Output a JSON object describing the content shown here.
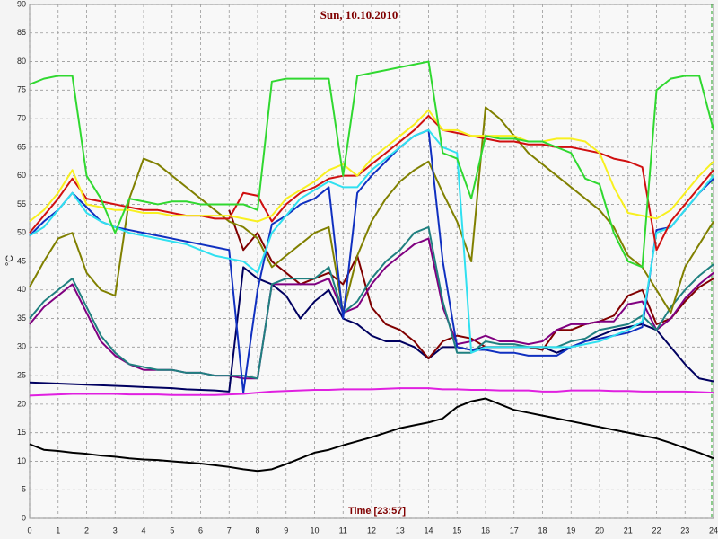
{
  "chart_data": {
    "type": "line",
    "title": "Sun, 10.10.2010",
    "x_label": "Time [23:57]",
    "y_label": "°C",
    "x": [
      0,
      0.5,
      1,
      1.5,
      2,
      2.5,
      3,
      3.5,
      4,
      4.5,
      5,
      5.5,
      6,
      6.5,
      7,
      7.5,
      8,
      8.5,
      9,
      9.5,
      10,
      10.5,
      11,
      11.5,
      12,
      12.5,
      13,
      13.5,
      14,
      14.5,
      15,
      15.5,
      16,
      16.5,
      17,
      17.5,
      18,
      18.5,
      19,
      19.5,
      20,
      20.5,
      21,
      21.5,
      22,
      22.5,
      23,
      23.5,
      24
    ],
    "xlim": [
      0,
      24
    ],
    "xticks": [
      0,
      1,
      2,
      3,
      4,
      5,
      6,
      7,
      8,
      9,
      10,
      11,
      12,
      13,
      14,
      15,
      16,
      17,
      18,
      19,
      20,
      21,
      22,
      23,
      24
    ],
    "ylim": [
      0,
      90
    ],
    "yticks": [
      0,
      5,
      10,
      15,
      20,
      25,
      30,
      35,
      40,
      45,
      50,
      55,
      60,
      65,
      70,
      75,
      80,
      85,
      90
    ],
    "grid": true,
    "series": [
      {
        "color": "#000000",
        "values": [
          13,
          12,
          11.8,
          11.5,
          11.3,
          11,
          10.8,
          10.5,
          10.3,
          10.2,
          10,
          9.8,
          9.6,
          9.3,
          9,
          8.6,
          8.3,
          8.6,
          9.5,
          10.5,
          11.5,
          12,
          12.8,
          13.5,
          14.2,
          15,
          15.8,
          16.3,
          16.8,
          17.5,
          19.5,
          20.5,
          21,
          20,
          19,
          18.5,
          18,
          17.5,
          17,
          16.5,
          16,
          15.5,
          15,
          14.5,
          14,
          13.2,
          12.3,
          11.5,
          10.5
        ]
      },
      {
        "color": "#e020e0",
        "values": [
          21.5,
          21.6,
          21.7,
          21.8,
          21.8,
          21.8,
          21.8,
          21.7,
          21.7,
          21.7,
          21.6,
          21.6,
          21.6,
          21.6,
          21.7,
          21.8,
          22,
          22.2,
          22.3,
          22.4,
          22.5,
          22.5,
          22.6,
          22.6,
          22.6,
          22.7,
          22.8,
          22.8,
          22.8,
          22.6,
          22.6,
          22.5,
          22.5,
          22.4,
          22.4,
          22.4,
          22.2,
          22.2,
          22.4,
          22.4,
          22.4,
          22.3,
          22.3,
          22.2,
          22.2,
          22.2,
          22.2,
          22.1,
          22
        ]
      },
      {
        "color": "#000060",
        "values": [
          23.8,
          23.7,
          23.6,
          23.5,
          23.4,
          23.3,
          23.2,
          23.1,
          23,
          22.9,
          22.8,
          22.6,
          22.5,
          22.4,
          22.2,
          44,
          42,
          41,
          39,
          35,
          38,
          40,
          35,
          34,
          32,
          31,
          31,
          30,
          28,
          30,
          30,
          29.5,
          30,
          30,
          30,
          30,
          30,
          29,
          30,
          31,
          32,
          33,
          33.5,
          34,
          33,
          30,
          27,
          24.5,
          24
        ]
      },
      {
        "color": "#800000",
        "values": [
          null,
          null,
          null,
          null,
          null,
          null,
          null,
          null,
          null,
          null,
          null,
          null,
          null,
          null,
          54,
          47,
          50,
          45,
          43,
          41,
          42,
          43,
          41,
          46,
          37,
          34,
          33,
          31,
          28,
          31,
          32,
          31.5,
          30,
          30,
          30,
          30,
          29.5,
          33,
          33,
          34,
          34.5,
          35.5,
          39,
          40,
          34,
          35,
          38,
          40.5,
          42
        ]
      },
      {
        "color": "#800080",
        "values": [
          34,
          37,
          39,
          41,
          36,
          31,
          28.5,
          27,
          26,
          26,
          26,
          25.5,
          25.5,
          25,
          25,
          24.5,
          24.5,
          41,
          41,
          41,
          41,
          42,
          36,
          37,
          41,
          44,
          46,
          48,
          49,
          37,
          30.5,
          31,
          32,
          31,
          31,
          30.5,
          31,
          33,
          34,
          34,
          34.5,
          34.5,
          37.5,
          38,
          33,
          35,
          38.5,
          41,
          43
        ]
      },
      {
        "color": "#208080",
        "values": [
          35,
          38,
          40,
          42,
          37,
          32,
          29,
          27,
          26.5,
          26,
          26,
          25.5,
          25.5,
          25,
          25,
          25,
          24.5,
          41,
          42,
          42,
          42,
          44,
          36,
          38,
          42,
          45,
          47,
          50,
          51,
          38,
          29,
          29,
          31,
          30.5,
          30.5,
          30,
          30,
          30,
          31,
          31.5,
          33,
          33.5,
          34,
          35.5,
          33,
          37,
          40,
          42.5,
          44.5
        ]
      },
      {
        "color": "#808000",
        "values": [
          40.5,
          45,
          49,
          50,
          43,
          40,
          39,
          56,
          63,
          62,
          60,
          58,
          56,
          54,
          52,
          51,
          49,
          44,
          46,
          48,
          50,
          51,
          36,
          46,
          52,
          56,
          59,
          61,
          62.5,
          57,
          52,
          45,
          72,
          70,
          67,
          64,
          62,
          60,
          58,
          56,
          54,
          51,
          46,
          44,
          40,
          36,
          44,
          48,
          52
        ]
      },
      {
        "color": "#1030c0",
        "values": [
          49.5,
          52,
          54,
          57,
          54.5,
          52,
          51,
          50.5,
          50,
          49.5,
          49,
          48.5,
          48,
          47.5,
          47,
          22,
          40,
          51.5,
          53,
          55,
          56,
          58,
          35,
          57,
          60,
          62.5,
          65,
          67,
          68,
          45,
          30,
          29.5,
          29.5,
          29,
          29,
          28.5,
          28.5,
          28.5,
          30,
          31,
          31.5,
          32,
          32.5,
          33.5,
          50.5,
          51,
          54,
          57,
          59.5
        ]
      },
      {
        "color": "#30e0f0",
        "values": [
          49.5,
          51,
          54,
          57,
          53.5,
          52,
          51,
          50,
          49.5,
          49,
          48.5,
          48,
          47,
          46,
          45.5,
          45,
          43,
          50,
          53,
          56,
          57.5,
          59,
          58,
          58,
          61,
          63,
          65,
          67,
          68,
          65,
          64,
          29,
          30,
          30,
          30,
          30,
          30,
          30,
          30,
          30.5,
          31,
          32,
          33,
          34.5,
          50,
          51,
          54,
          57,
          60
        ]
      },
      {
        "color": "#d01010",
        "values": [
          50,
          53,
          56,
          59.5,
          56,
          55.5,
          55,
          54.5,
          54,
          54,
          53.5,
          53,
          53,
          52.5,
          52.5,
          57,
          56.5,
          52,
          55,
          57,
          58,
          59.5,
          60,
          60,
          62,
          64,
          66,
          68,
          70.5,
          68,
          67.5,
          67,
          66.5,
          66,
          66,
          65.5,
          65.5,
          65,
          65,
          64.5,
          64,
          63,
          62.5,
          61.5,
          47,
          52,
          55,
          58,
          61
        ]
      },
      {
        "color": "#f8f020",
        "values": [
          52,
          54,
          57,
          61,
          55,
          54.5,
          54,
          54,
          53.5,
          53.5,
          53,
          53,
          53,
          53,
          53,
          52.5,
          52,
          53,
          56,
          57.5,
          59,
          61,
          62,
          60,
          63,
          65,
          67,
          69,
          71.5,
          68,
          68,
          67,
          67,
          67,
          67,
          66,
          66,
          66.5,
          66.5,
          66,
          64,
          58,
          53.5,
          53,
          52.5,
          54,
          57,
          60,
          62.5
        ]
      },
      {
        "color": "#30d830",
        "values": [
          76,
          77,
          77.5,
          77.5,
          60,
          56,
          50,
          56,
          55.5,
          55,
          55.5,
          55.5,
          55,
          55,
          55,
          55,
          54,
          76.5,
          77,
          77,
          77,
          77,
          60,
          77.5,
          78,
          78.5,
          79,
          79.5,
          80,
          64,
          63,
          56,
          67,
          66.5,
          66.5,
          66,
          66,
          65,
          64,
          59.5,
          58.5,
          50,
          45,
          44,
          75,
          77,
          77.5,
          77.5,
          68
        ]
      }
    ]
  }
}
